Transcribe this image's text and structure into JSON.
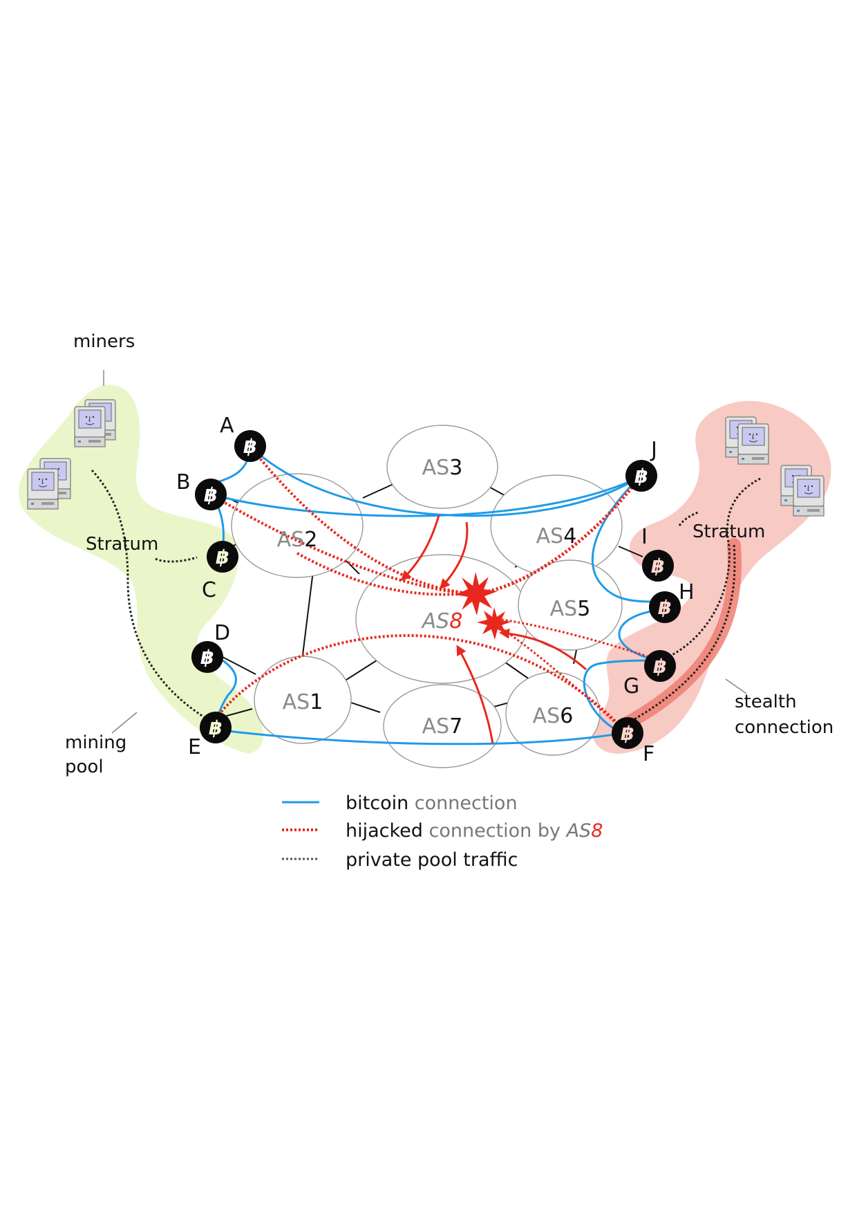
{
  "diagram": {
    "as_nodes": [
      {
        "id": "AS1",
        "prefix": "AS",
        "num": "1"
      },
      {
        "id": "AS2",
        "prefix": "AS",
        "num": "2"
      },
      {
        "id": "AS3",
        "prefix": "AS",
        "num": "3"
      },
      {
        "id": "AS4",
        "prefix": "AS",
        "num": "4"
      },
      {
        "id": "AS5",
        "prefix": "AS",
        "num": "5"
      },
      {
        "id": "AS6",
        "prefix": "AS",
        "num": "6"
      },
      {
        "id": "AS7",
        "prefix": "AS",
        "num": "7"
      },
      {
        "id": "AS8",
        "prefix": "AS",
        "num": "8"
      }
    ],
    "bitcoin_nodes": [
      "A",
      "B",
      "C",
      "D",
      "E",
      "F",
      "G",
      "H",
      "I",
      "J"
    ],
    "bitcoin_symbol": "฿",
    "labels": {
      "miners": "miners",
      "stratum_left": "Stratum",
      "stratum_right": "Stratum",
      "mining": "mining",
      "pool": "pool",
      "stealth": "stealth",
      "connection": "connection"
    },
    "legend": {
      "bitcoin_a": "bitcoin",
      "bitcoin_b": " connection",
      "hijacked_a": "hijacked",
      "hijacked_b": " connection by ",
      "hijacked_as": "AS",
      "hijacked_num": "8",
      "private_a": "private pool traffic"
    },
    "colors": {
      "bitcoin_link": "#1e9be9",
      "hijack": "#e8281e",
      "private": "#222222",
      "pool_left": "#eaf6c9",
      "pool_right": "#f8cac4",
      "stealth_glow": "#ef7f72"
    }
  }
}
